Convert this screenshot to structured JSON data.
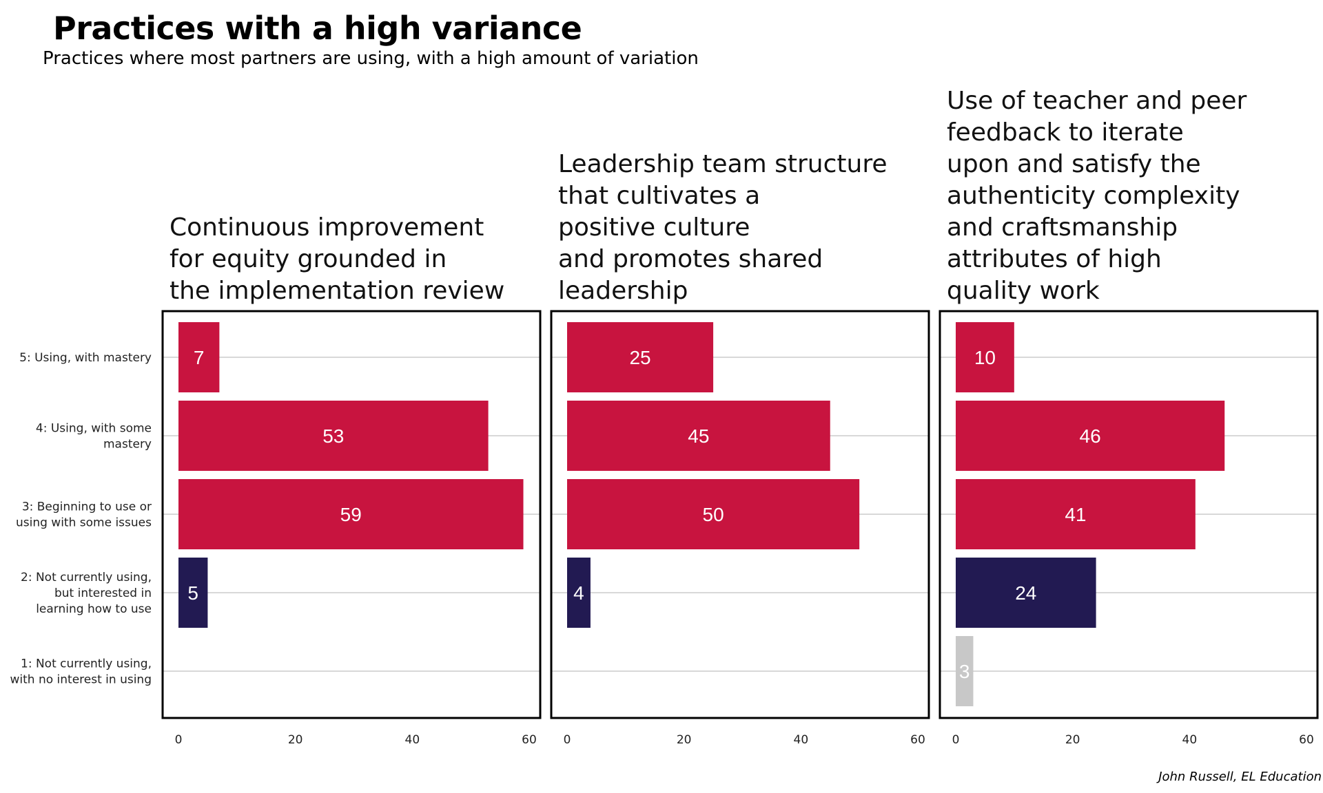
{
  "header": {
    "title": "Practices with a high variance",
    "subtitle": "Practices where most partners are using, with a high amount of variation"
  },
  "caption": "John Russell, EL Education",
  "colors": {
    "using": "#c8143f",
    "interested": "#221a52",
    "no_interest": "#c8c8c8",
    "grid": "#c0c0c0",
    "frame": "#000000"
  },
  "chart_data": {
    "type": "bar",
    "orientation": "horizontal",
    "categories": [
      [
        "5: Using, with mastery"
      ],
      [
        "4: Using, with some",
        "mastery"
      ],
      [
        "3: Beginning to use or",
        "using with some issues"
      ],
      [
        "2: Not currently using,",
        "but interested in",
        "learning how to use"
      ],
      [
        "1: Not currently using,",
        "with no interest in using"
      ]
    ],
    "xlim": [
      0,
      60
    ],
    "xticks": [
      0,
      20,
      40,
      60
    ],
    "grid": true,
    "panels": [
      {
        "title": [
          "Continuous improvement",
          "for equity grounded in",
          "the implementation review"
        ],
        "values": [
          7,
          53,
          59,
          5,
          null
        ]
      },
      {
        "title": [
          "Leadership team structure",
          "that cultivates a",
          "positive culture",
          "and promotes shared",
          "leadership"
        ],
        "values": [
          25,
          45,
          50,
          4,
          null
        ]
      },
      {
        "title": [
          "Use of teacher and peer",
          "feedback to iterate",
          "upon and satisfy the",
          "authenticity complexity",
          "and craftsmanship",
          "attributes of high",
          "quality work"
        ],
        "values": [
          10,
          46,
          41,
          24,
          3
        ]
      }
    ]
  }
}
